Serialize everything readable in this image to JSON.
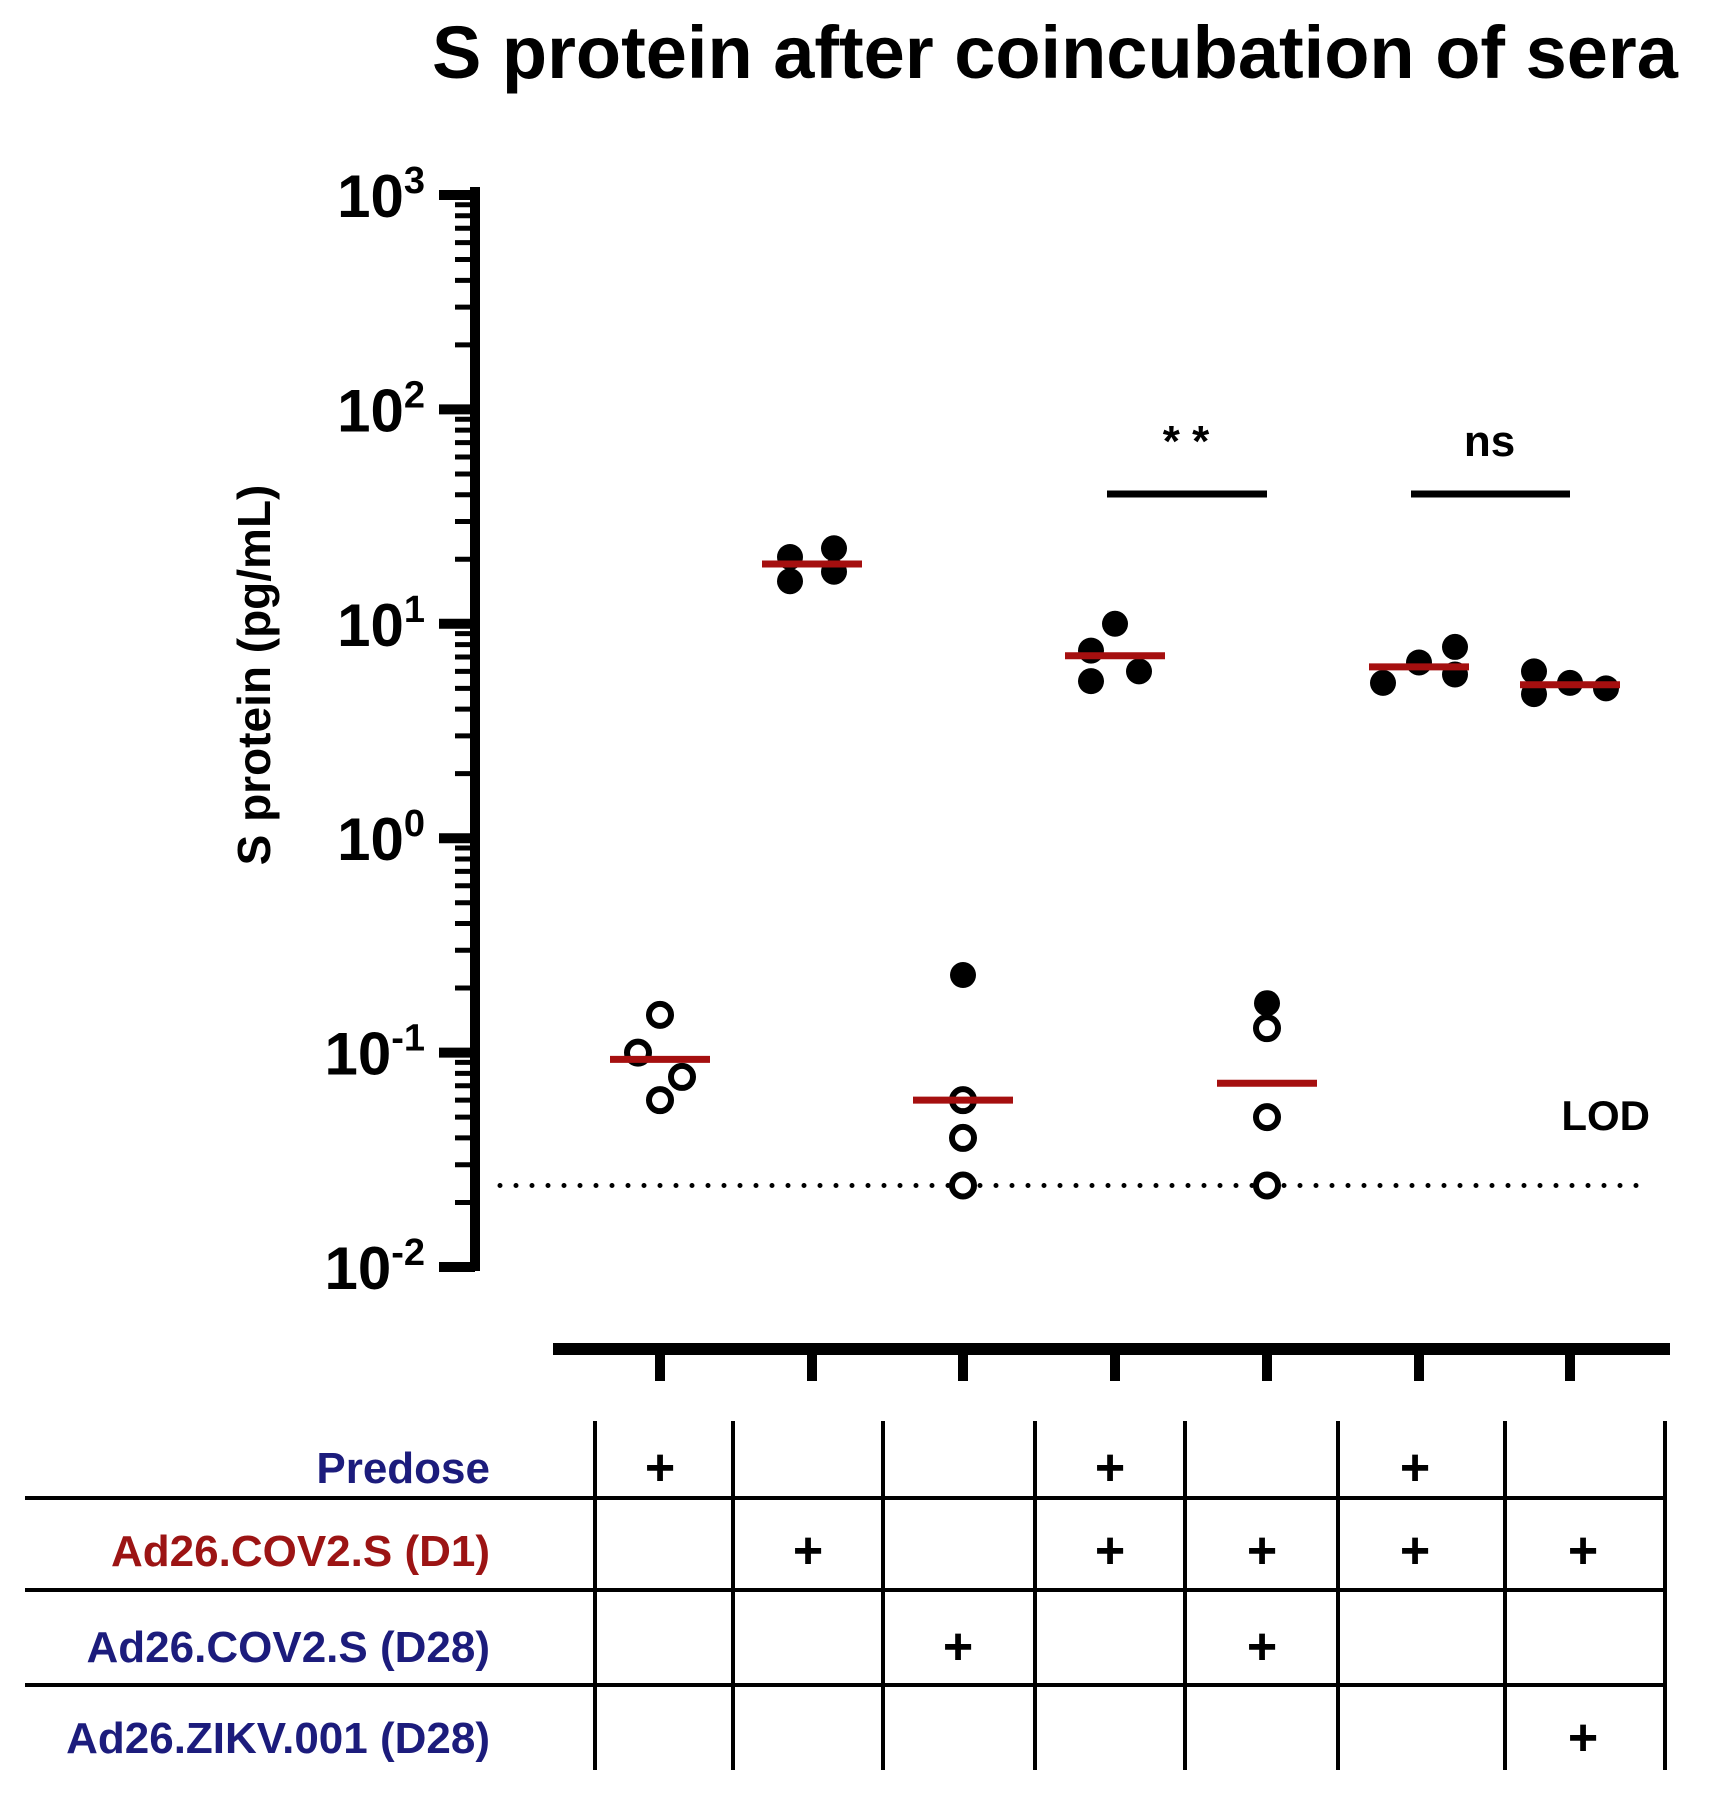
{
  "chart_data": {
    "type": "scatter",
    "title": "S protein after coincubation of sera",
    "ylabel": "S protein (pg/mL)",
    "yscale": "log",
    "ylim": [
      0.01,
      1000
    ],
    "y_ticks": [
      {
        "value": 1000,
        "base": "10",
        "exp": "3"
      },
      {
        "value": 100,
        "base": "10",
        "exp": "2"
      },
      {
        "value": 10,
        "base": "10",
        "exp": "1"
      },
      {
        "value": 1,
        "base": "10",
        "exp": "0"
      },
      {
        "value": 0.1,
        "base": "10",
        "exp": "-1"
      },
      {
        "value": 0.01,
        "base": "10",
        "exp": "-2"
      }
    ],
    "lod": {
      "label": "LOD",
      "value": 0.024
    },
    "groups": [
      {
        "index": 1,
        "median": 0.093,
        "points": [
          {
            "dx": 0,
            "value": 0.15,
            "filled": false
          },
          {
            "dx": -22,
            "value": 0.1,
            "filled": false
          },
          {
            "dx": 22,
            "value": 0.077,
            "filled": false
          },
          {
            "dx": 0,
            "value": 0.06,
            "filled": false
          }
        ]
      },
      {
        "index": 2,
        "median": 19,
        "points": [
          {
            "dx": -22,
            "value": 20.5,
            "filled": true
          },
          {
            "dx": 22,
            "value": 22.5,
            "filled": true
          },
          {
            "dx": -22,
            "value": 15.8,
            "filled": true
          },
          {
            "dx": 22,
            "value": 17.5,
            "filled": true
          }
        ]
      },
      {
        "index": 3,
        "median": 0.06,
        "points": [
          {
            "dx": 0,
            "value": 0.23,
            "filled": true
          },
          {
            "dx": 0,
            "value": 0.06,
            "filled": false
          },
          {
            "dx": 0,
            "value": 0.04,
            "filled": false
          },
          {
            "dx": 0,
            "value": 0.024,
            "filled": false
          }
        ]
      },
      {
        "index": 4,
        "median": 7.1,
        "points": [
          {
            "dx": 0,
            "value": 10,
            "filled": true
          },
          {
            "dx": -24,
            "value": 7.5,
            "filled": true
          },
          {
            "dx": 24,
            "value": 6.0,
            "filled": true
          },
          {
            "dx": -24,
            "value": 5.4,
            "filled": true
          }
        ]
      },
      {
        "index": 5,
        "median": 0.072,
        "points": [
          {
            "dx": 0,
            "value": 0.17,
            "filled": true
          },
          {
            "dx": 0,
            "value": 0.13,
            "filled": false
          },
          {
            "dx": 0,
            "value": 0.05,
            "filled": false
          },
          {
            "dx": 0,
            "value": 0.024,
            "filled": false
          }
        ]
      },
      {
        "index": 6,
        "median": 6.3,
        "points": [
          {
            "dx": -36,
            "value": 5.3,
            "filled": true
          },
          {
            "dx": 0,
            "value": 6.6,
            "filled": true
          },
          {
            "dx": 36,
            "value": 7.8,
            "filled": true
          },
          {
            "dx": 36,
            "value": 5.8,
            "filled": true
          }
        ]
      },
      {
        "index": 7,
        "median": 5.2,
        "points": [
          {
            "dx": -36,
            "value": 6.0,
            "filled": true
          },
          {
            "dx": -36,
            "value": 4.7,
            "filled": true
          },
          {
            "dx": 0,
            "value": 5.3,
            "filled": true
          },
          {
            "dx": 36,
            "value": 5.0,
            "filled": true
          }
        ]
      }
    ],
    "annotations": [
      {
        "label": "* *",
        "from_group": 4,
        "to_group": 5
      },
      {
        "label": "ns",
        "from_group": 6,
        "to_group": 7
      }
    ],
    "condition_table": {
      "rows": [
        {
          "label": "Predose",
          "color": "#1c1c7c",
          "marks": [
            1,
            0,
            0,
            1,
            0,
            1,
            0
          ]
        },
        {
          "label": "Ad26.COV2.S (D1)",
          "color": "#9c1414",
          "marks": [
            0,
            1,
            0,
            1,
            1,
            1,
            1
          ]
        },
        {
          "label": "Ad26.COV2.S (D28)",
          "color": "#1c1c7c",
          "marks": [
            0,
            0,
            1,
            0,
            1,
            0,
            0
          ]
        },
        {
          "label": "Ad26.ZIKV.001 (D28)",
          "color": "#1c1c7c",
          "marks": [
            0,
            0,
            0,
            0,
            0,
            0,
            1
          ]
        }
      ],
      "mark_symbol": "+"
    },
    "colors": {
      "median": "#a50f0f",
      "points": "#000000"
    }
  }
}
